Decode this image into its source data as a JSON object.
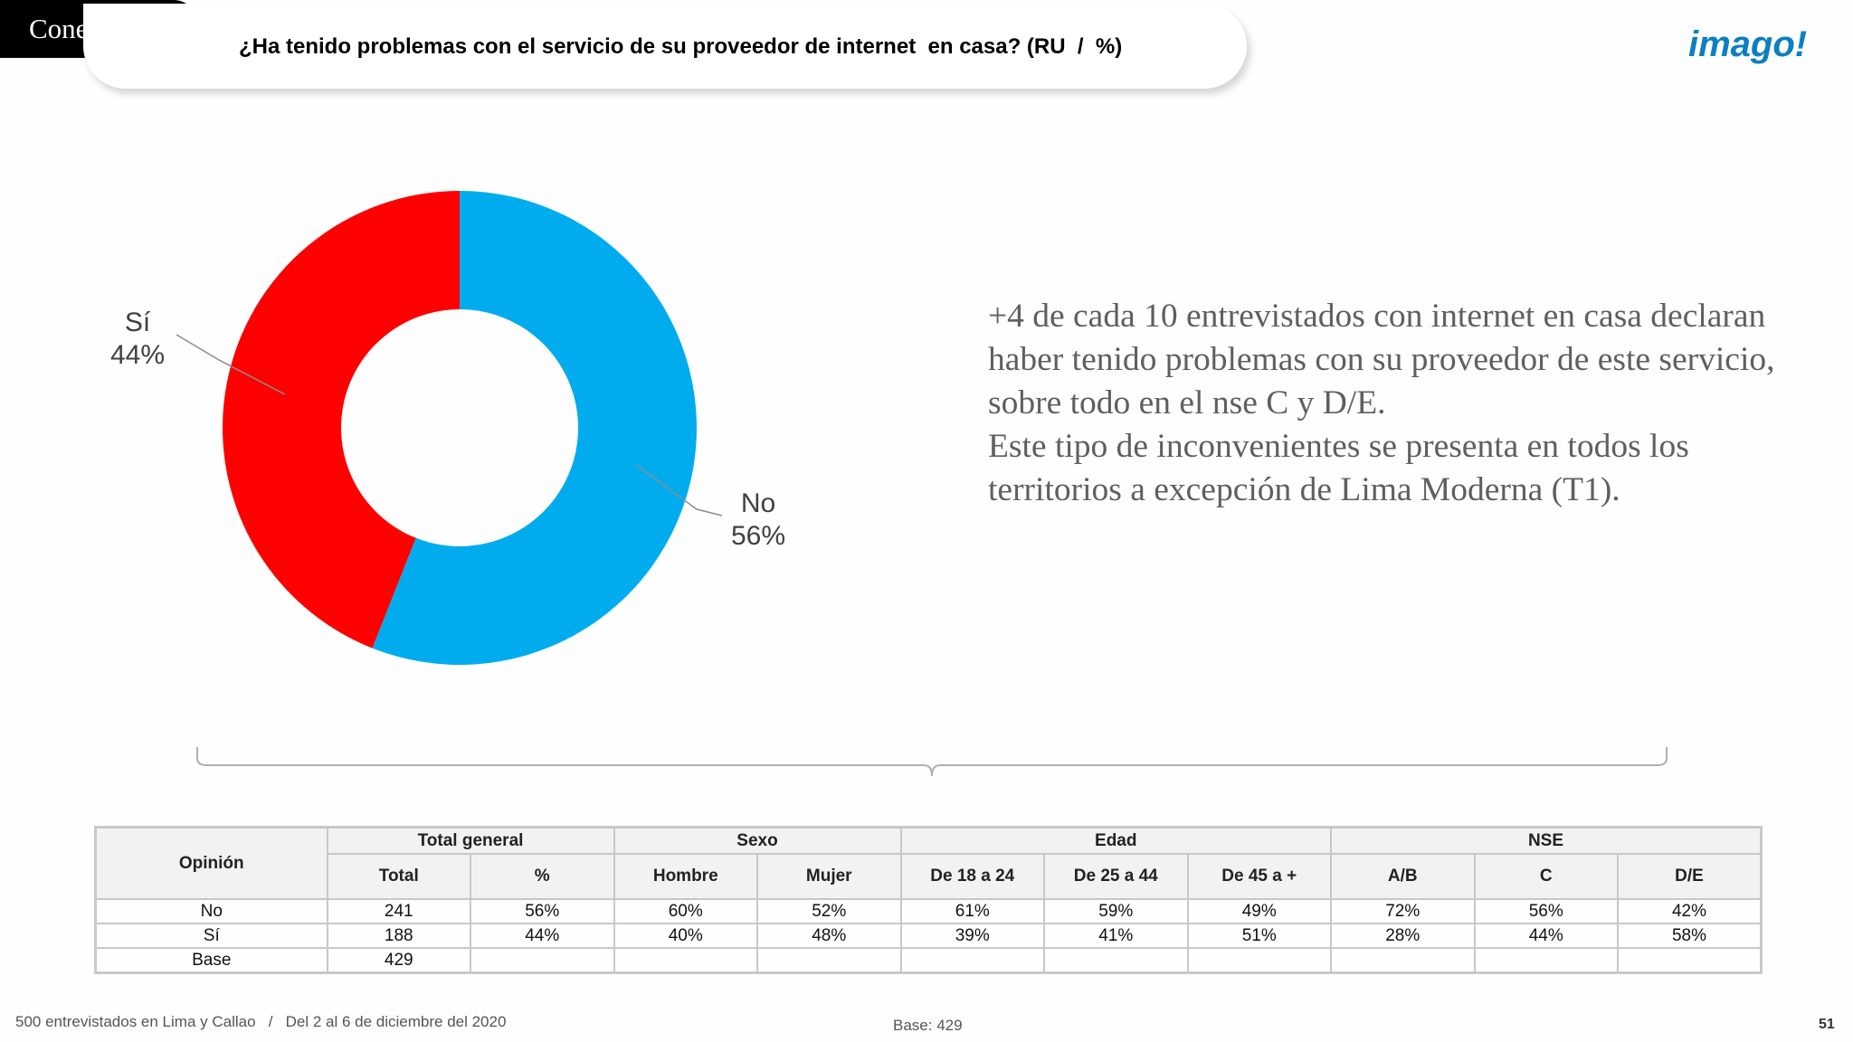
{
  "header": {
    "section_tag": "Conexión",
    "question": "¿Ha tenido problemas con el servicio de su proveedor de internet  en casa? (RU  /  %)",
    "logo_text": "imago!"
  },
  "chart_data": {
    "type": "pie",
    "variant": "donut",
    "categories": [
      "Sí",
      "No"
    ],
    "values": [
      44,
      56
    ],
    "value_labels": [
      "44%",
      "56%"
    ],
    "colors": [
      "#fe0000",
      "#00acee"
    ]
  },
  "narrative": {
    "paragraph_1": "+4 de cada 10 entrevistados con internet en casa declaran haber tenido problemas con su proveedor de este servicio, sobre todo en el nse C y D/E.",
    "paragraph_2": "Este tipo de inconvenientes se presenta en todos los territorios a excepción de Lima Moderna (T1)."
  },
  "table": {
    "opinion_header": "Opinión",
    "groups": [
      "Total general",
      "Sexo",
      "Edad",
      "NSE"
    ],
    "subheaders": [
      "Total",
      "%",
      "Hombre",
      "Mujer",
      "De 18 a 24",
      "De 25 a 44",
      "De 45 a +",
      "A/B",
      "C",
      "D/E"
    ],
    "rows": [
      {
        "label": "No",
        "cells": [
          "241",
          "56%",
          "60%",
          "52%",
          "61%",
          "59%",
          "49%",
          "72%",
          "56%",
          "42%"
        ]
      },
      {
        "label": "Sí",
        "cells": [
          "188",
          "44%",
          "40%",
          "48%",
          "39%",
          "41%",
          "51%",
          "28%",
          "44%",
          "58%"
        ]
      },
      {
        "label": "Base",
        "cells": [
          "429",
          "",
          "",
          "",
          "",
          "",
          "",
          "",
          "",
          ""
        ]
      }
    ]
  },
  "footer": {
    "left": "500 entrevistados en Lima y Callao   /   Del 2 al 6 de diciembre del 2020",
    "center": "Base: 429",
    "page": "51"
  }
}
